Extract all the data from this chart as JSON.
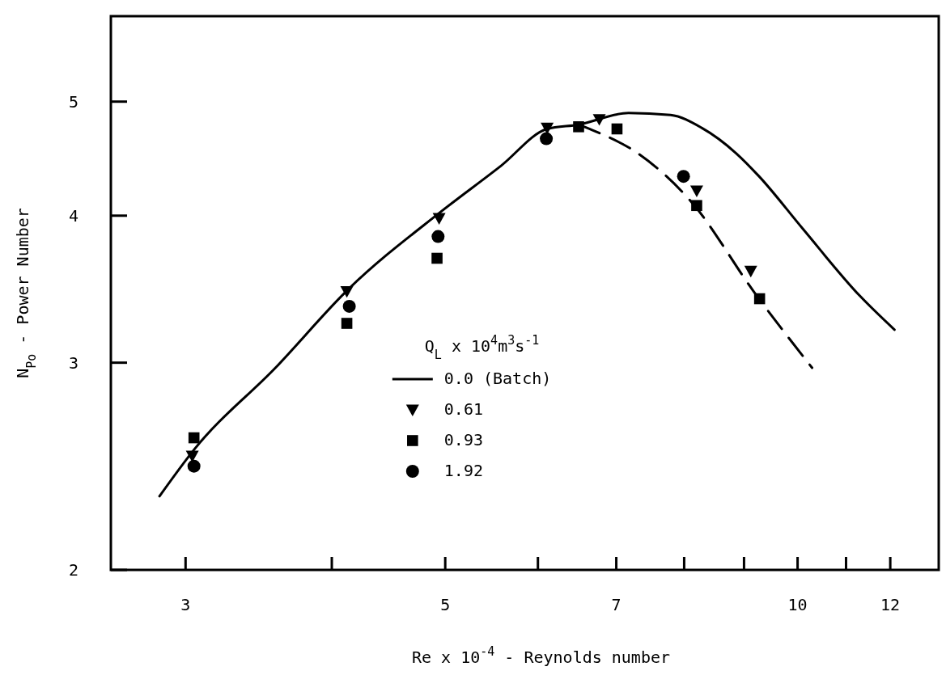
{
  "chart_data": {
    "type": "scatter",
    "xlabel": "Re x 10$^{-4}$ - Reynolds number",
    "ylabel": "N$_{Po}$ - Power Number",
    "legend_title": "Q$_{L}$ x 10$^{4}$m$^{3}$s$^{-1}$",
    "log": "xy",
    "xlim": [
      2.59,
      13.2
    ],
    "ylim": [
      2,
      5.91
    ],
    "xticks": [
      3,
      {
        "value": 4,
        "label": null
      },
      5,
      {
        "value": 6,
        "label": null
      },
      7,
      {
        "value": 8,
        "label": null
      },
      {
        "value": 9,
        "label": null
      },
      10,
      {
        "value": 11,
        "label": null
      },
      12
    ],
    "yticks": [
      2,
      3,
      4,
      5
    ],
    "legend": "bottom",
    "series": [
      {
        "name": "0.0 (Batch)",
        "type": "line",
        "line_style": "solid",
        "color": "#000000",
        "x": [
          2.85,
          3.05,
          3.58,
          4.14,
          4.94,
          5.58,
          6.11,
          6.5,
          7.17,
          7.79,
          8.28,
          8.86,
          9.27,
          10.1,
          11.3,
          12.1
        ],
        "values": [
          2.31,
          2.53,
          2.97,
          3.47,
          4.02,
          4.41,
          4.74,
          4.78,
          4.89,
          4.87,
          4.75,
          4.52,
          4.32,
          3.9,
          3.42,
          3.2
        ]
      },
      {
        "type": "line",
        "line_style": "dashed",
        "color": "#000000",
        "x": [
          6.5,
          6.64,
          7.3,
          8.13,
          9.17,
          10.29
        ],
        "values": [
          4.78,
          4.74,
          4.52,
          4.1,
          3.45,
          2.97
        ]
      },
      {
        "name": "0.61",
        "marker": "triangle",
        "color": "#000000",
        "x": [
          3.04,
          4.12,
          4.94,
          6.11,
          6.77,
          8.2,
          9.12
        ],
        "values": [
          2.5,
          3.45,
          3.98,
          4.75,
          4.83,
          4.2,
          3.59
        ]
      },
      {
        "name": "0.93",
        "marker": "square",
        "color": "#000000",
        "x": [
          3.05,
          4.12,
          4.92,
          6.5,
          7.01,
          8.2,
          9.28
        ],
        "values": [
          2.59,
          3.24,
          3.68,
          4.76,
          4.74,
          4.08,
          3.4
        ]
      },
      {
        "name": "1.92",
        "marker": "circle",
        "color": "#000000",
        "x": [
          3.05,
          4.14,
          4.93,
          6.1,
          7.99
        ],
        "values": [
          2.45,
          3.35,
          3.84,
          4.65,
          4.32
        ]
      }
    ]
  }
}
